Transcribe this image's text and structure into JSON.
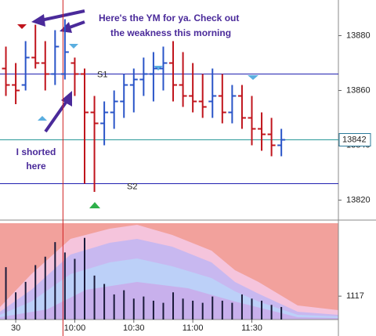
{
  "chart_data": [
    {
      "type": "ohlc",
      "x": [
        565,
        570,
        575,
        580,
        585,
        590,
        595,
        600,
        605,
        610,
        615,
        620,
        625,
        630,
        635,
        640,
        645,
        650,
        655,
        660,
        665,
        670,
        675,
        680,
        685,
        690,
        695,
        700,
        705
      ],
      "open": [
        13868,
        13862,
        13862,
        13872,
        13870,
        13866,
        13866,
        13870,
        13866,
        13852,
        13848,
        13852,
        13856,
        13862,
        13864,
        13866,
        13868,
        13870,
        13862,
        13858,
        13856,
        13856,
        13858,
        13852,
        13858,
        13850,
        13846,
        13844,
        13840
      ],
      "high": [
        13876,
        13870,
        13878,
        13884,
        13878,
        13882,
        13886,
        13872,
        13868,
        13858,
        13856,
        13860,
        13866,
        13868,
        13872,
        13874,
        13876,
        13878,
        13874,
        13870,
        13866,
        13868,
        13866,
        13862,
        13862,
        13858,
        13852,
        13850,
        13846
      ],
      "low": [
        13858,
        13855,
        13860,
        13868,
        13860,
        13862,
        13864,
        13858,
        13826,
        13823,
        13840,
        13846,
        13850,
        13852,
        13858,
        13856,
        13860,
        13856,
        13854,
        13852,
        13850,
        13850,
        13848,
        13848,
        13846,
        13840,
        13838,
        13836,
        13836
      ],
      "close": [
        13862,
        13860,
        13872,
        13870,
        13866,
        13876,
        13874,
        13866,
        13852,
        13848,
        13852,
        13856,
        13862,
        13864,
        13866,
        13868,
        13870,
        13862,
        13858,
        13856,
        13854,
        13858,
        13852,
        13858,
        13850,
        13846,
        13844,
        13840,
        13842
      ],
      "up_color": "#2a55c8",
      "down_color": "#c0141c",
      "xlim": [
        562,
        734
      ],
      "ylim": [
        13813,
        13893
      ],
      "yticks": [
        13820,
        13840,
        13860,
        13880
      ],
      "levels": [
        {
          "label": "S1",
          "value": 13866
        },
        {
          "label": "S2",
          "value": 13826
        }
      ],
      "last_price": 13842,
      "marker_x": 594,
      "annotations": [
        "Here's the YM for ya. Check out",
        "the weakness this morning",
        "I shorted",
        "here"
      ]
    },
    {
      "type": "bar",
      "x": [
        565,
        570,
        575,
        580,
        585,
        590,
        595,
        600,
        605,
        610,
        615,
        620,
        625,
        630,
        635,
        640,
        645,
        650,
        655,
        660,
        665,
        670,
        675,
        680,
        685,
        690,
        695,
        700,
        705
      ],
      "values": [
        2500,
        1300,
        1800,
        2600,
        3000,
        3700,
        3200,
        2900,
        3900,
        2100,
        1700,
        1200,
        1400,
        1000,
        1100,
        900,
        800,
        1300,
        1000,
        900,
        800,
        1100,
        900,
        800,
        1200,
        1000,
        900,
        700,
        600
      ],
      "color": "#1a1a3a",
      "xlim": [
        562,
        734
      ],
      "ylim": [
        0,
        4600
      ],
      "yticks": [
        1117
      ],
      "xticks": [
        {
          "value": 570,
          "label": "30"
        },
        {
          "value": 600,
          "label": "10:00"
        },
        {
          "value": 630,
          "label": "10:30"
        },
        {
          "value": 660,
          "label": "11:00"
        },
        {
          "value": 690,
          "label": "11:30"
        }
      ]
    }
  ]
}
